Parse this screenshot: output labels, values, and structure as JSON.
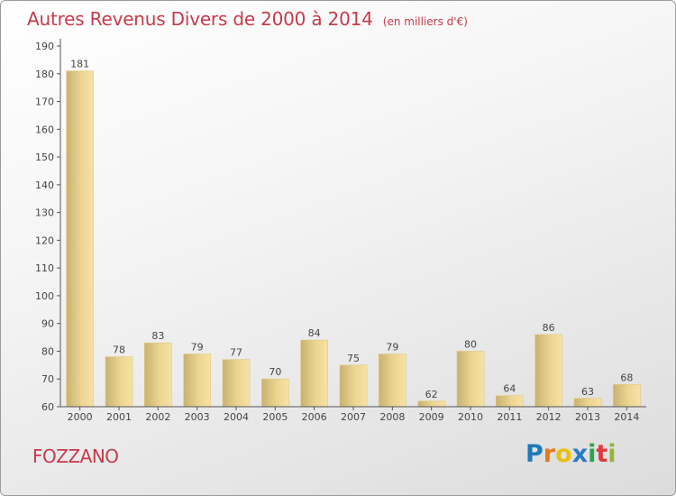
{
  "chart_data": {
    "type": "bar",
    "title": "Autres Revenus Divers de 2000 à 2014",
    "subtitle": "(en milliers d'€)",
    "categories": [
      "2000",
      "2001",
      "2002",
      "2003",
      "2004",
      "2005",
      "2006",
      "2007",
      "2008",
      "2009",
      "2010",
      "2011",
      "2012",
      "2013",
      "2014"
    ],
    "values": [
      181,
      78,
      83,
      79,
      77,
      70,
      84,
      75,
      79,
      62,
      80,
      64,
      86,
      63,
      68
    ],
    "ylim": [
      60,
      190
    ],
    "yticks": [
      60,
      70,
      80,
      90,
      100,
      110,
      120,
      130,
      140,
      150,
      160,
      170,
      180,
      190
    ],
    "grid": false,
    "bar_color": "#ecd591"
  },
  "commune": "FOZZANO",
  "logo": {
    "text": "Proxiti",
    "letters": [
      "P",
      "r",
      "o",
      "x",
      "i",
      "t",
      "i"
    ]
  }
}
